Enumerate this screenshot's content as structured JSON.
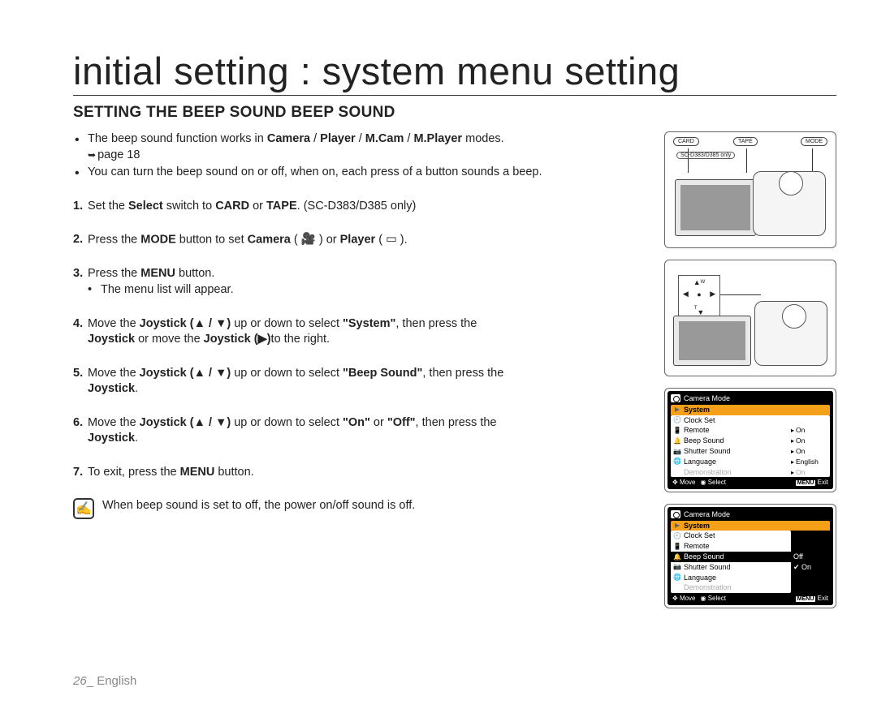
{
  "page_title": "initial setting : system menu setting",
  "section_title": "SETTING THE BEEP SOUND BEEP SOUND",
  "intro_bullets": [
    {
      "pre": "The beep sound function works in ",
      "b1": "Camera",
      "s1": " / ",
      "b2": "Player",
      "s2": " / ",
      "b3": "M.Cam",
      "s3": " / ",
      "b4": "M.Player",
      "post": " modes.",
      "pageref": "page 18"
    },
    {
      "text": "You can turn the beep sound on or off, when on, each press of a button sounds a beep."
    }
  ],
  "steps": {
    "1": {
      "pre": "Set the ",
      "b1": "Select",
      "mid1": " switch to ",
      "b2": "CARD",
      "mid2": " or ",
      "b3": "TAPE",
      "post": ". (SC-D383/D385 only)"
    },
    "2": {
      "pre": "Press the ",
      "b1": "MODE",
      "mid1": " button to set ",
      "b2": "Camera",
      "mid2": " ( ",
      "icon1": "📷",
      "mid3": " ) or ",
      "b3": "Player",
      "mid4": " ( ",
      "icon2": "▭",
      "post": " )."
    },
    "3": {
      "pre": "Press the ",
      "b1": "MENU",
      "post": " button.",
      "sub": "The menu list will appear."
    },
    "4": {
      "pre": "Move the ",
      "b1": "Joystick (▲ / ▼)",
      "mid1": " up or down to select ",
      "b2": "\"System\"",
      "mid2": ", then press the ",
      "line2a": "Joystick",
      "line2b": " or move the ",
      "line2c": "Joystick (▶)",
      "line2d": "to the right."
    },
    "5": {
      "pre": "Move the ",
      "b1": "Joystick (▲ / ▼)",
      "mid1": " up or down to select ",
      "b2": "\"Beep Sound\"",
      "mid2": ", then press the ",
      "line2a": "Joystick",
      "line2b": "."
    },
    "6": {
      "pre": "Move the ",
      "b1": "Joystick (▲ / ▼)",
      "mid1": " up or down to select ",
      "b2": "\"On\"",
      "mid2": " or ",
      "b3": "\"Off\"",
      "mid3": ", then press the ",
      "line2a": "Joystick",
      "line2b": "."
    },
    "7": {
      "pre": "To exit, press the ",
      "b1": "MENU",
      "post": " button."
    }
  },
  "note_icon": "✍",
  "note_text": "When beep sound is set to off, the power on/off sound is off.",
  "footer": {
    "page": "26",
    "sep": "_ ",
    "lang": "English"
  },
  "fig1": {
    "card": "CARD",
    "tape": "TAPE",
    "mode": "MODE",
    "model_note": "SC-D383/D385 only"
  },
  "fig2": {
    "w": "W",
    "t": "T"
  },
  "menu_common": {
    "mode_title": "Camera Mode",
    "system": "System",
    "move": "Move",
    "select": "Select",
    "menu_btn": "MENU",
    "exit": "Exit"
  },
  "menu1": {
    "items": [
      {
        "ico": "🕘",
        "label": "Clock Set",
        "val": ""
      },
      {
        "ico": "📱",
        "label": "Remote",
        "val": "On",
        "arrow": true
      },
      {
        "ico": "🔔",
        "label": "Beep Sound",
        "val": "On",
        "arrow": true
      },
      {
        "ico": "📷",
        "label": "Shutter Sound",
        "val": "On",
        "arrow": true
      },
      {
        "ico": "🌐",
        "label": "Language",
        "val": "English",
        "arrow": true
      },
      {
        "ico": "",
        "label": "Demonstration",
        "val": "On",
        "arrow": true,
        "dim": true
      }
    ]
  },
  "menu2": {
    "items": [
      {
        "ico": "🕘",
        "label": "Clock Set"
      },
      {
        "ico": "📱",
        "label": "Remote"
      },
      {
        "ico": "🔔",
        "label": "Beep Sound",
        "hl": true
      },
      {
        "ico": "📷",
        "label": "Shutter Sound"
      },
      {
        "ico": "🌐",
        "label": "Language"
      },
      {
        "ico": "",
        "label": "Demonstration",
        "dim": true
      }
    ],
    "opts": [
      {
        "label": "Off"
      },
      {
        "label": "On",
        "checked": true
      }
    ]
  },
  "colors": {
    "highlight": "#f4a018"
  }
}
